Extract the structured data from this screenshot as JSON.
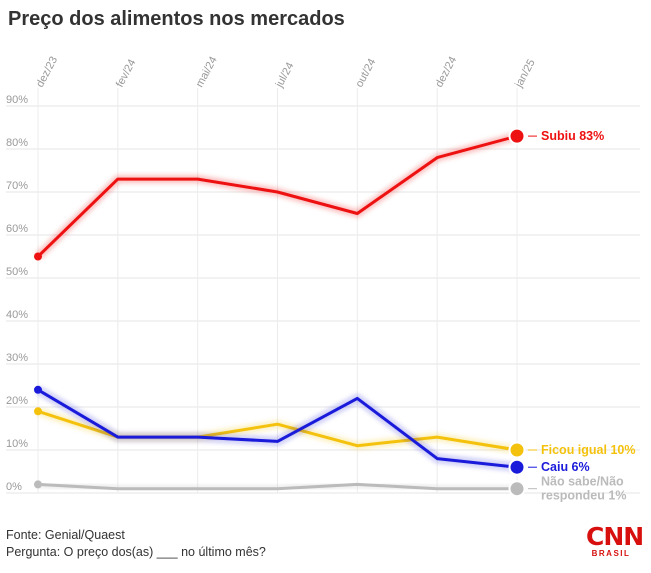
{
  "title": "Preço dos alimentos nos mercados",
  "footer": {
    "source": "Fonte: Genial/Quaest",
    "question": "Pergunta: O preço dos(as) ___ no último mês?"
  },
  "logo": {
    "main": "CNN",
    "sub": "BRASIL"
  },
  "chart_data": {
    "type": "line",
    "title": "Preço dos alimentos nos mercados",
    "categories": [
      "dez/23",
      "fev/24",
      "mai/24",
      "jul/24",
      "out/24",
      "dez/24",
      "jan/25"
    ],
    "yticks": [
      "0%",
      "10%",
      "20%",
      "30%",
      "40%",
      "50%",
      "60%",
      "70%",
      "80%",
      "90%"
    ],
    "ylim": [
      0,
      90
    ],
    "grid": true,
    "legend": "direct-labels-right",
    "series": [
      {
        "label_lines": [
          "Subiu 83%"
        ],
        "color": "#ee1111",
        "values": [
          55,
          73,
          73,
          70,
          65,
          78,
          83
        ]
      },
      {
        "label_lines": [
          "Ficou igual 10%"
        ],
        "color": "#f4c20d",
        "values": [
          19,
          13,
          13,
          16,
          11,
          13,
          10
        ]
      },
      {
        "label_lines": [
          "Caiu 6%"
        ],
        "color": "#1a1adb",
        "values": [
          24,
          13,
          13,
          12,
          22,
          8,
          6
        ]
      },
      {
        "label_lines": [
          "Não sabe/Não",
          "respondeu 1%"
        ],
        "color": "#bbbbbb",
        "values": [
          2,
          1,
          1,
          1,
          2,
          1,
          1
        ]
      }
    ]
  }
}
